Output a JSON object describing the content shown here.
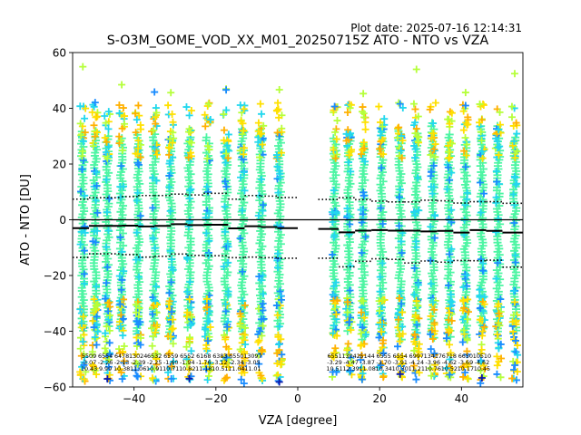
{
  "chart_data": {
    "type": "scatter",
    "plot_date": "Plot date: 2025-07-16 12:14:31",
    "title": "S-O3M_GOME_VOD_XX_M01_20250715Z ATO - NTO vs VZA",
    "xlabel": "VZA [degree]",
    "ylabel": "ATO - NTO [DU]",
    "xlim": [
      -55,
      55
    ],
    "ylim": [
      -60,
      60
    ],
    "xticks": [
      -40,
      -20,
      0,
      20,
      40
    ],
    "xtick_labels": [
      "−40",
      "−20",
      "0",
      "20",
      "40"
    ],
    "yticks": [
      -60,
      -40,
      -20,
      0,
      20,
      40,
      60
    ],
    "ytick_labels": [
      "−60",
      "−40",
      "−20",
      "0",
      "20",
      "40",
      "60"
    ],
    "grid": false,
    "zero_line": true,
    "columns_x": [
      -52.5,
      -49.5,
      -46.5,
      -43,
      -39,
      -35,
      -31,
      -26.5,
      -22,
      -17.5,
      -13.5,
      -9,
      -4.5,
      9,
      12.5,
      16,
      20.5,
      25,
      29,
      33,
      37,
      41,
      45,
      49,
      53
    ],
    "bins": [
      {
        "vza": -51,
        "count": "5509",
        "mean": "-3.07",
        "std": "10.43"
      },
      {
        "vza": -47,
        "count": "6554",
        "mean": "-2.26",
        "std": "9.99"
      },
      {
        "vza": -43,
        "count": "6478",
        "mean": "-2.13",
        "std": "10.38"
      },
      {
        "vza": -39,
        "count": "13024",
        "mean": "-2.39",
        "std": "11.06"
      },
      {
        "vza": -35,
        "count": "6532",
        "mean": "-2.25",
        "std": "10.91"
      },
      {
        "vza": -31,
        "count": "6559",
        "mean": "-1.60",
        "std": "10.71"
      },
      {
        "vza": -27,
        "count": "6552",
        "mean": "-1.94",
        "std": "10.82"
      },
      {
        "vza": -23,
        "count": "6168",
        "mean": "-1.76",
        "std": "11.18"
      },
      {
        "vza": -19,
        "count": "6383",
        "mean": "-3.12",
        "std": "10.51"
      },
      {
        "vza": -15,
        "count": "6550",
        "mean": "-2.34",
        "std": "11.04"
      },
      {
        "vza": -11,
        "count": "13097",
        "mean": "-3.05",
        "std": "11.01"
      },
      {
        "vza": 9,
        "count": "6551",
        "mean": "-3.29",
        "std": "10.51"
      },
      {
        "vza": 13,
        "count": "13042",
        "mean": "-4.47",
        "std": "12.39"
      },
      {
        "vza": 17,
        "count": "5144",
        "mean": "-3.87",
        "std": "11.08"
      },
      {
        "vza": 21,
        "count": "6555",
        "mean": "-3.70",
        "std": "10.34"
      },
      {
        "vza": 25,
        "count": "6554",
        "mean": "-3.91",
        "std": "10.30"
      },
      {
        "vza": 29,
        "count": "6997",
        "mean": "-4.24",
        "std": "11.21"
      },
      {
        "vza": 33,
        "count": "13417",
        "mean": "-3.96",
        "std": "10.76"
      },
      {
        "vza": 37,
        "count": "6718",
        "mean": "-4.62",
        "std": "10.52"
      },
      {
        "vza": 41,
        "count": "6650",
        "mean": "-3.69",
        "std": "10.17"
      },
      {
        "vza": 45,
        "count": "10510",
        "mean": "-4.62",
        "std": "10.45"
      }
    ],
    "mean_line": [
      {
        "x": [
          -55,
          -51
        ],
        "y": -3
      },
      {
        "x": [
          -51,
          -43
        ],
        "y": -2.2
      },
      {
        "x": [
          -43,
          -39
        ],
        "y": -2.1
      },
      {
        "x": [
          -39,
          -35
        ],
        "y": -2.4
      },
      {
        "x": [
          -35,
          -31
        ],
        "y": -2.2
      },
      {
        "x": [
          -31,
          -27
        ],
        "y": -1.6
      },
      {
        "x": [
          -27,
          -23
        ],
        "y": -1.9
      },
      {
        "x": [
          -23,
          -17
        ],
        "y": -1.8
      },
      {
        "x": [
          -17,
          -13
        ],
        "y": -3.1
      },
      {
        "x": [
          -13,
          -9
        ],
        "y": -2.3
      },
      {
        "x": [
          -9,
          -5
        ],
        "y": -2.6
      },
      {
        "x": [
          -5,
          0
        ],
        "y": -3.0
      },
      {
        "x": [
          5,
          10
        ],
        "y": -3.3
      },
      {
        "x": [
          10,
          14
        ],
        "y": -4.5
      },
      {
        "x": [
          14,
          18
        ],
        "y": -3.9
      },
      {
        "x": [
          18,
          22
        ],
        "y": -3.7
      },
      {
        "x": [
          22,
          26
        ],
        "y": -3.9
      },
      {
        "x": [
          26,
          30
        ],
        "y": -3.9
      },
      {
        "x": [
          30,
          34
        ],
        "y": -4.2
      },
      {
        "x": [
          34,
          38
        ],
        "y": -4.0
      },
      {
        "x": [
          38,
          42
        ],
        "y": -4.6
      },
      {
        "x": [
          42,
          46
        ],
        "y": -3.7
      },
      {
        "x": [
          46,
          50
        ],
        "y": -4.0
      },
      {
        "x": [
          50,
          55
        ],
        "y": -4.6
      }
    ],
    "upper_band": [
      {
        "x": [
          -55,
          -51
        ],
        "y": 7.4
      },
      {
        "x": [
          -51,
          -43
        ],
        "y": 7.9
      },
      {
        "x": [
          -43,
          -39
        ],
        "y": 8.3
      },
      {
        "x": [
          -39,
          -35
        ],
        "y": 8.7
      },
      {
        "x": [
          -35,
          -31
        ],
        "y": 8.7
      },
      {
        "x": [
          -31,
          -27
        ],
        "y": 9.2
      },
      {
        "x": [
          -27,
          -23
        ],
        "y": 8.9
      },
      {
        "x": [
          -23,
          -17
        ],
        "y": 9.5
      },
      {
        "x": [
          -17,
          -13
        ],
        "y": 7.4
      },
      {
        "x": [
          -13,
          -9
        ],
        "y": 8.7
      },
      {
        "x": [
          -9,
          -5
        ],
        "y": 8.5
      },
      {
        "x": [
          -5,
          0
        ],
        "y": 8.0
      },
      {
        "x": [
          5,
          10
        ],
        "y": 7.3
      },
      {
        "x": [
          10,
          14
        ],
        "y": 7.9
      },
      {
        "x": [
          14,
          18
        ],
        "y": 7.2
      },
      {
        "x": [
          18,
          22
        ],
        "y": 6.7
      },
      {
        "x": [
          22,
          26
        ],
        "y": 6.4
      },
      {
        "x": [
          26,
          30
        ],
        "y": 6.4
      },
      {
        "x": [
          30,
          34
        ],
        "y": 7.0
      },
      {
        "x": [
          34,
          38
        ],
        "y": 6.8
      },
      {
        "x": [
          38,
          42
        ],
        "y": 6.0
      },
      {
        "x": [
          42,
          46
        ],
        "y": 6.5
      },
      {
        "x": [
          46,
          50
        ],
        "y": 6.5
      },
      {
        "x": [
          50,
          55
        ],
        "y": 5.9
      }
    ],
    "lower_band": [
      {
        "x": [
          -55,
          -51
        ],
        "y": -13.5
      },
      {
        "x": [
          -51,
          -43
        ],
        "y": -12.2
      },
      {
        "x": [
          -43,
          -39
        ],
        "y": -12.5
      },
      {
        "x": [
          -39,
          -35
        ],
        "y": -13.4
      },
      {
        "x": [
          -35,
          -31
        ],
        "y": -13.1
      },
      {
        "x": [
          -31,
          -27
        ],
        "y": -12.3
      },
      {
        "x": [
          -27,
          -23
        ],
        "y": -12.8
      },
      {
        "x": [
          -23,
          -17
        ],
        "y": -12.9
      },
      {
        "x": [
          -17,
          -13
        ],
        "y": -13.6
      },
      {
        "x": [
          -13,
          -9
        ],
        "y": -13.4
      },
      {
        "x": [
          -9,
          -5
        ],
        "y": -13.6
      },
      {
        "x": [
          -5,
          0
        ],
        "y": -13.8
      },
      {
        "x": [
          5,
          10
        ],
        "y": -13.8
      },
      {
        "x": [
          10,
          14
        ],
        "y": -16.9
      },
      {
        "x": [
          14,
          18
        ],
        "y": -14.9
      },
      {
        "x": [
          18,
          22
        ],
        "y": -14.0
      },
      {
        "x": [
          22,
          26
        ],
        "y": -14.2
      },
      {
        "x": [
          26,
          30
        ],
        "y": -15.5
      },
      {
        "x": [
          30,
          34
        ],
        "y": -14.8
      },
      {
        "x": [
          34,
          38
        ],
        "y": -15.2
      },
      {
        "x": [
          38,
          42
        ],
        "y": -14.6
      },
      {
        "x": [
          42,
          46
        ],
        "y": -14.7
      },
      {
        "x": [
          46,
          50
        ],
        "y": -14.5
      },
      {
        "x": [
          50,
          55
        ],
        "y": -17.0
      }
    ],
    "colors": {
      "main": "#4df5a3",
      "cyan": "#22d8ee",
      "blue": "#1a8cff",
      "navy": "#0a1aaa",
      "yellow": "#ffe000",
      "lime": "#b5ff3a",
      "orange": "#ffb000",
      "line": "#000000"
    }
  }
}
